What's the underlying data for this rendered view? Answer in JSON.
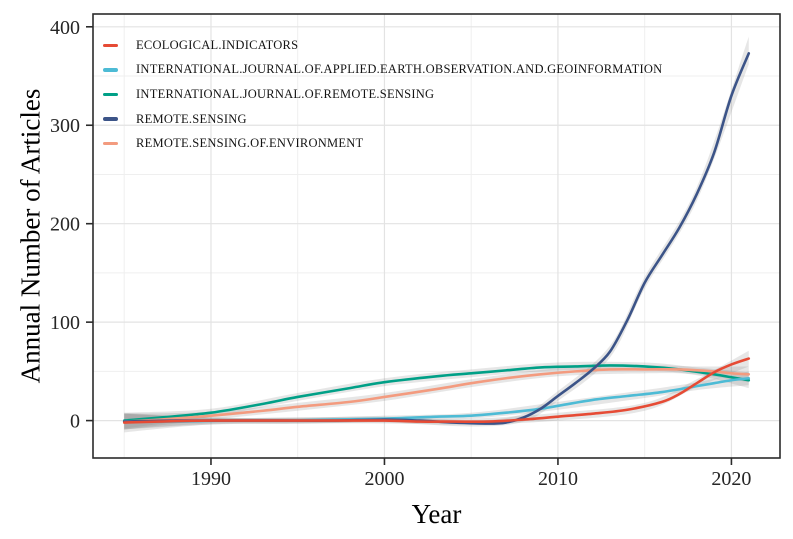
{
  "chart_data": {
    "type": "line",
    "title": "",
    "xlabel": "Year",
    "ylabel": "Annual Number of Articles",
    "xlim": [
      1983.2,
      2022.8
    ],
    "ylim": [
      -38,
      413
    ],
    "x_ticks": [
      1990,
      2000,
      2010,
      2020
    ],
    "x_minor_ticks": [
      1985,
      1995,
      2005,
      2015
    ],
    "y_ticks": [
      0,
      100,
      200,
      300,
      400
    ],
    "y_minor_ticks": [
      50,
      150,
      250,
      350
    ],
    "grid": true,
    "legend_position": "top-left-inside",
    "style": {
      "band_fill": "#808080",
      "band_opacity": 0.2,
      "grid_major_color": "#e3e3e3",
      "grid_minor_color": "#efefef",
      "panel_border_color": "#2b2b2b",
      "tick_color": "#2b2b2b",
      "tick_label_color": "#262626"
    },
    "series": [
      {
        "name": "ECOLOGICAL.INDICATORS",
        "color": "#E64B35",
        "points": [
          [
            1985,
            -2
          ],
          [
            1987,
            -1
          ],
          [
            1990,
            0
          ],
          [
            1993,
            0
          ],
          [
            1996,
            0
          ],
          [
            2000,
            0
          ],
          [
            2002,
            -1
          ],
          [
            2004,
            -1
          ],
          [
            2006,
            -1
          ],
          [
            2008,
            1
          ],
          [
            2010,
            4
          ],
          [
            2012,
            7
          ],
          [
            2014,
            11
          ],
          [
            2016,
            19
          ],
          [
            2017,
            27
          ],
          [
            2018,
            38
          ],
          [
            2019,
            49
          ],
          [
            2020,
            57
          ],
          [
            2021,
            63
          ]
        ],
        "band": [
          [
            1985,
            -12,
            8
          ],
          [
            1990,
            -4,
            3
          ],
          [
            1995,
            -3,
            3
          ],
          [
            2000,
            -3,
            3
          ],
          [
            2005,
            -4,
            2
          ],
          [
            2010,
            0,
            8
          ],
          [
            2015,
            10,
            18
          ],
          [
            2018,
            34,
            42
          ],
          [
            2021,
            55,
            71
          ]
        ]
      },
      {
        "name": "INTERNATIONAL.JOURNAL.OF.APPLIED.EARTH.OBSERVATION.AND.GEOINFORMATION",
        "color": "#4DBBD5",
        "points": [
          [
            1985,
            -1
          ],
          [
            1988,
            -1
          ],
          [
            1991,
            0
          ],
          [
            1994,
            0
          ],
          [
            1997,
            1
          ],
          [
            2000,
            2
          ],
          [
            2003,
            4
          ],
          [
            2005,
            5
          ],
          [
            2007,
            8
          ],
          [
            2009,
            12
          ],
          [
            2010,
            15
          ],
          [
            2012,
            21
          ],
          [
            2014,
            25
          ],
          [
            2016,
            29
          ],
          [
            2018,
            35
          ],
          [
            2019,
            38
          ],
          [
            2020,
            41
          ],
          [
            2021,
            43
          ]
        ],
        "band": [
          [
            1985,
            -9,
            7
          ],
          [
            1990,
            -4,
            3
          ],
          [
            1995,
            -3,
            3
          ],
          [
            2000,
            -1,
            5
          ],
          [
            2005,
            2,
            8
          ],
          [
            2010,
            11,
            19
          ],
          [
            2015,
            23,
            31
          ],
          [
            2018,
            31,
            39
          ],
          [
            2021,
            36,
            50
          ]
        ]
      },
      {
        "name": "INTERNATIONAL.JOURNAL.OF.REMOTE.SENSING",
        "color": "#00A087",
        "points": [
          [
            1985,
            0
          ],
          [
            1987,
            3
          ],
          [
            1990,
            8
          ],
          [
            1993,
            17
          ],
          [
            1995,
            24
          ],
          [
            1998,
            33
          ],
          [
            2000,
            39
          ],
          [
            2003,
            45
          ],
          [
            2005,
            48
          ],
          [
            2007,
            51
          ],
          [
            2009,
            54
          ],
          [
            2011,
            55
          ],
          [
            2013,
            56
          ],
          [
            2015,
            55
          ],
          [
            2017,
            52
          ],
          [
            2019,
            47
          ],
          [
            2020,
            44
          ],
          [
            2021,
            41
          ]
        ],
        "band": [
          [
            1985,
            -8,
            8
          ],
          [
            1990,
            4,
            12
          ],
          [
            1995,
            20,
            28
          ],
          [
            2000,
            35,
            43
          ],
          [
            2005,
            44,
            52
          ],
          [
            2010,
            51,
            59
          ],
          [
            2015,
            51,
            59
          ],
          [
            2018,
            46,
            54
          ],
          [
            2021,
            33,
            49
          ]
        ]
      },
      {
        "name": "REMOTE.SENSING",
        "color": "#3C5488",
        "points": [
          [
            1985,
            -1
          ],
          [
            1988,
            0
          ],
          [
            1991,
            0
          ],
          [
            1994,
            0
          ],
          [
            1997,
            0
          ],
          [
            2000,
            1
          ],
          [
            2002,
            0
          ],
          [
            2004,
            -2
          ],
          [
            2006,
            -3
          ],
          [
            2007,
            -2
          ],
          [
            2008,
            3
          ],
          [
            2009,
            12
          ],
          [
            2010,
            25
          ],
          [
            2011,
            38
          ],
          [
            2012,
            52
          ],
          [
            2013,
            70
          ],
          [
            2014,
            102
          ],
          [
            2015,
            140
          ],
          [
            2016,
            168
          ],
          [
            2017,
            196
          ],
          [
            2018,
            230
          ],
          [
            2019,
            272
          ],
          [
            2020,
            330
          ],
          [
            2021,
            373
          ]
        ],
        "band": [
          [
            1985,
            -9,
            7
          ],
          [
            1990,
            -3,
            3
          ],
          [
            1995,
            -3,
            3
          ],
          [
            2000,
            -2,
            4
          ],
          [
            2005,
            -6,
            0
          ],
          [
            2008,
            -1,
            7
          ],
          [
            2010,
            20,
            30
          ],
          [
            2013,
            64,
            76
          ],
          [
            2015,
            134,
            146
          ],
          [
            2018,
            223,
            237
          ],
          [
            2021,
            362,
            390
          ]
        ]
      },
      {
        "name": "REMOTE.SENSING.OF.ENVIRONMENT",
        "color": "#F39B7F",
        "points": [
          [
            1985,
            -1
          ],
          [
            1987,
            1
          ],
          [
            1990,
            5
          ],
          [
            1993,
            10
          ],
          [
            1995,
            14
          ],
          [
            1998,
            19
          ],
          [
            2000,
            24
          ],
          [
            2003,
            32
          ],
          [
            2005,
            38
          ],
          [
            2007,
            43
          ],
          [
            2009,
            47
          ],
          [
            2011,
            50
          ],
          [
            2013,
            52
          ],
          [
            2015,
            52
          ],
          [
            2017,
            52
          ],
          [
            2019,
            50
          ],
          [
            2020,
            48
          ],
          [
            2021,
            47
          ]
        ],
        "band": [
          [
            1985,
            -9,
            7
          ],
          [
            1990,
            1,
            9
          ],
          [
            1995,
            10,
            18
          ],
          [
            2000,
            20,
            28
          ],
          [
            2005,
            34,
            42
          ],
          [
            2010,
            45,
            53
          ],
          [
            2015,
            48,
            56
          ],
          [
            2018,
            47,
            55
          ],
          [
            2021,
            39,
            55
          ]
        ]
      }
    ]
  }
}
